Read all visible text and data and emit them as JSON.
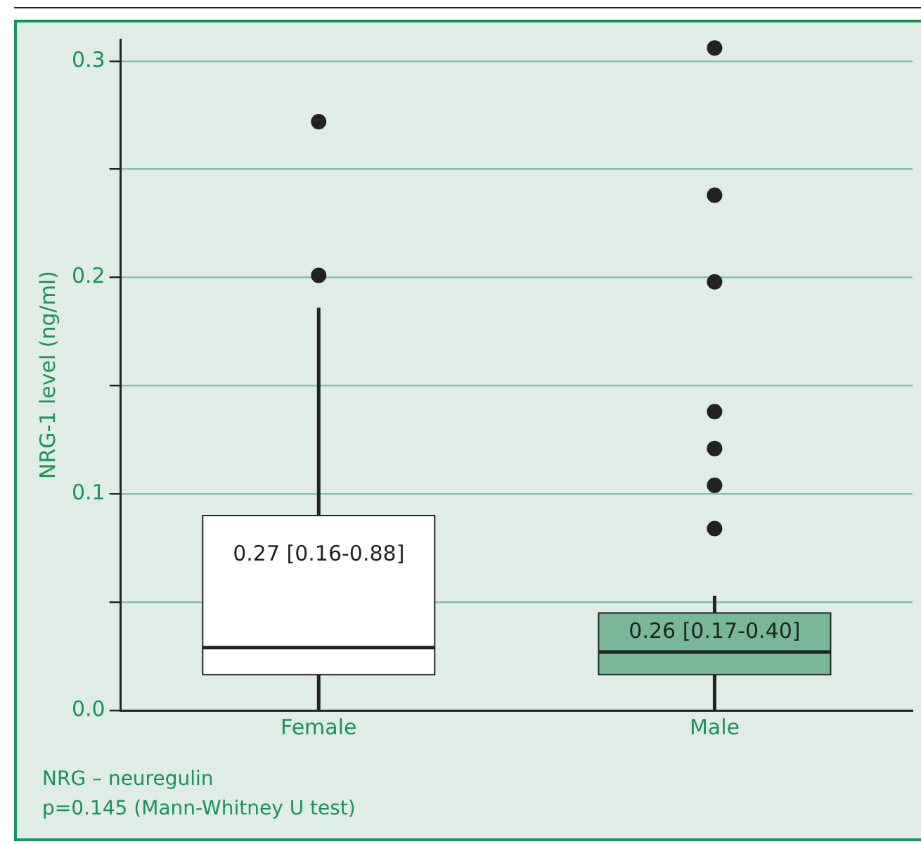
{
  "chart_data": {
    "type": "box",
    "ylabel": "NRG-1 level (ng/ml)",
    "categories": [
      "Female",
      "Male"
    ],
    "colors": [
      "#ffffff",
      "#78b898"
    ],
    "boxes": [
      {
        "low": 0,
        "q1": 0.0165,
        "median": 0.029,
        "q3": 0.09,
        "high": 0.186,
        "outliers": [
          0.201,
          0.272
        ]
      },
      {
        "low": 0,
        "q1": 0.0165,
        "median": 0.027,
        "q3": 0.045,
        "high": 0.053,
        "outliers": [
          0.084,
          0.104,
          0.121,
          0.138,
          0.198,
          0.238,
          0.306
        ]
      }
    ],
    "ylim": [
      0,
      0.31
    ],
    "yticks": [
      {
        "value": 0,
        "label": "0.0"
      },
      {
        "value": 0.05,
        "label": null
      },
      0.1,
      {
        "value": 0.15,
        "label": null
      },
      0.2,
      {
        "value": 0.25,
        "label": null
      },
      0.3
    ],
    "grid": "y",
    "annotations": [
      "0.27 [0.16-0.88]",
      "0.26 [0.17-0.40]",
      "NRG – neuregulin",
      "p=0.145 (Mann-Whitney U test)"
    ]
  }
}
